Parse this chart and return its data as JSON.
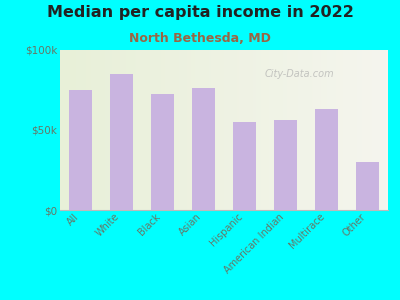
{
  "title": "Median per capita income in 2022",
  "subtitle": "North Bethesda, MD",
  "categories": [
    "All",
    "White",
    "Black",
    "Asian",
    "Hispanic",
    "American Indian",
    "Multirace",
    "Other"
  ],
  "values": [
    75000,
    85000,
    72000,
    76000,
    55000,
    56000,
    63000,
    30000
  ],
  "bar_color": "#c9b4e0",
  "background_color": "#00ffff",
  "title_color": "#222222",
  "subtitle_color": "#996644",
  "tick_label_color": "#667766",
  "ylim": [
    0,
    100000
  ],
  "yticks": [
    0,
    50000,
    100000
  ],
  "ytick_labels": [
    "$0",
    "$50k",
    "$100k"
  ],
  "watermark": "City-Data.com",
  "plot_bg_left": "#e8f0d8",
  "plot_bg_right": "#f5f5ee"
}
